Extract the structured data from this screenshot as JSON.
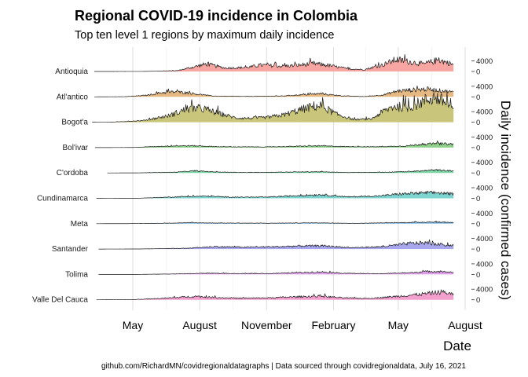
{
  "chart_data": {
    "type": "area",
    "title": "Regional COVID-19 incidence in Colombia",
    "subtitle": "Top ten level 1 regions by maximum daily incidence",
    "xlabel": "Date",
    "ylabel": "Daily incidence (confirmed cases)",
    "caption": "github.com/RichardMN/covidregionaldatagraphs | Data sourced through covidregionaldata, July 16, 2021",
    "x_ticks": [
      "May",
      "August",
      "November",
      "February",
      "May",
      "August"
    ],
    "x_tick_dates": [
      "2020-05-01",
      "2020-08-01",
      "2020-11-01",
      "2021-02-01",
      "2021-05-01",
      "2021-08-01"
    ],
    "x_range": [
      "2020-03-06",
      "2021-07-16"
    ],
    "y_ticks": [
      0,
      4000
    ],
    "y_axis_position": "right",
    "grid": true,
    "legend": "none",
    "series": [
      {
        "name": "Antioquia",
        "color": "#F8A6A1",
        "start": "2020-03-09",
        "points": [
          [
            "2020-05-15",
            20
          ],
          [
            "2020-07-01",
            300
          ],
          [
            "2020-07-25",
            1800
          ],
          [
            "2020-08-10",
            2800
          ],
          [
            "2020-09-05",
            1300
          ],
          [
            "2020-10-05",
            1500
          ],
          [
            "2020-10-25",
            2400
          ],
          [
            "2020-11-20",
            2000
          ],
          [
            "2020-12-10",
            2200
          ],
          [
            "2021-01-05",
            3000
          ],
          [
            "2021-01-25",
            2300
          ],
          [
            "2021-02-20",
            1000
          ],
          [
            "2021-03-15",
            700
          ],
          [
            "2021-04-10",
            2500
          ],
          [
            "2021-04-28",
            4500
          ],
          [
            "2021-05-20",
            3500
          ],
          [
            "2021-06-05",
            2800
          ],
          [
            "2021-06-25",
            4300
          ],
          [
            "2021-07-10",
            3200
          ],
          [
            "2021-07-16",
            2500
          ]
        ]
      },
      {
        "name": "Atl'antico",
        "color": "#E6B983",
        "start": "2020-03-09",
        "points": [
          [
            "2020-04-20",
            50
          ],
          [
            "2020-05-20",
            600
          ],
          [
            "2020-06-10",
            1600
          ],
          [
            "2020-06-30",
            1900
          ],
          [
            "2020-07-20",
            1300
          ],
          [
            "2020-08-20",
            300
          ],
          [
            "2020-10-01",
            150
          ],
          [
            "2020-11-20",
            300
          ],
          [
            "2020-12-15",
            700
          ],
          [
            "2021-01-15",
            1200
          ],
          [
            "2021-02-10",
            400
          ],
          [
            "2021-03-15",
            100
          ],
          [
            "2021-04-10",
            700
          ],
          [
            "2021-04-30",
            2200
          ],
          [
            "2021-05-20",
            2600
          ],
          [
            "2021-06-10",
            2900
          ],
          [
            "2021-06-30",
            2300
          ],
          [
            "2021-07-16",
            1800
          ]
        ]
      },
      {
        "name": "Bogot'a",
        "color": "#C9C57A",
        "start": "2020-03-06",
        "points": [
          [
            "2020-04-01",
            20
          ],
          [
            "2020-05-15",
            600
          ],
          [
            "2020-06-20",
            2500
          ],
          [
            "2020-07-15",
            5000
          ],
          [
            "2020-08-05",
            5200
          ],
          [
            "2020-08-25",
            3500
          ],
          [
            "2020-09-20",
            1600
          ],
          [
            "2020-10-10",
            1500
          ],
          [
            "2020-11-01",
            1800
          ],
          [
            "2020-11-25",
            2800
          ],
          [
            "2020-12-15",
            4500
          ],
          [
            "2021-01-05",
            6000
          ],
          [
            "2021-01-15",
            6200
          ],
          [
            "2021-02-05",
            3000
          ],
          [
            "2021-03-01",
            1000
          ],
          [
            "2021-03-25",
            1200
          ],
          [
            "2021-04-10",
            4000
          ],
          [
            "2021-04-25",
            6000
          ],
          [
            "2021-05-15",
            5500
          ],
          [
            "2021-06-05",
            8000
          ],
          [
            "2021-06-20",
            9500
          ],
          [
            "2021-07-05",
            7500
          ],
          [
            "2021-07-16",
            5000
          ]
        ]
      },
      {
        "name": "Bol'ivar",
        "color": "#8FD18A",
        "start": "2020-03-10",
        "points": [
          [
            "2020-05-01",
            50
          ],
          [
            "2020-06-20",
            600
          ],
          [
            "2020-07-20",
            700
          ],
          [
            "2020-09-01",
            300
          ],
          [
            "2020-11-01",
            250
          ],
          [
            "2021-01-10",
            650
          ],
          [
            "2021-02-15",
            400
          ],
          [
            "2021-04-01",
            300
          ],
          [
            "2021-05-10",
            600
          ],
          [
            "2021-06-01",
            1200
          ],
          [
            "2021-06-25",
            1500
          ],
          [
            "2021-07-16",
            1300
          ]
        ]
      },
      {
        "name": "C'ordoba",
        "color": "#7FD6A6",
        "start": "2020-03-27",
        "points": [
          [
            "2020-05-10",
            30
          ],
          [
            "2020-07-01",
            300
          ],
          [
            "2020-07-25",
            800
          ],
          [
            "2020-08-20",
            400
          ],
          [
            "2020-10-01",
            150
          ],
          [
            "2021-01-10",
            450
          ],
          [
            "2021-02-20",
            150
          ],
          [
            "2021-04-15",
            300
          ],
          [
            "2021-05-20",
            550
          ],
          [
            "2021-06-20",
            1100
          ],
          [
            "2021-07-05",
            900
          ],
          [
            "2021-07-16",
            750
          ]
        ]
      },
      {
        "name": "Cundinamarca",
        "color": "#7ED4D1",
        "start": "2020-03-12",
        "points": [
          [
            "2020-05-10",
            50
          ],
          [
            "2020-07-10",
            650
          ],
          [
            "2020-08-10",
            800
          ],
          [
            "2020-09-15",
            450
          ],
          [
            "2020-11-01",
            450
          ],
          [
            "2020-12-20",
            1100
          ],
          [
            "2021-01-15",
            1400
          ],
          [
            "2021-02-20",
            550
          ],
          [
            "2021-04-05",
            900
          ],
          [
            "2021-05-01",
            1600
          ],
          [
            "2021-06-05",
            2000
          ],
          [
            "2021-06-25",
            2100
          ],
          [
            "2021-07-16",
            1600
          ]
        ]
      },
      {
        "name": "Meta",
        "color": "#7FB6DF",
        "start": "2020-03-12",
        "points": [
          [
            "2020-04-20",
            20
          ],
          [
            "2020-06-01",
            120
          ],
          [
            "2020-07-15",
            350
          ],
          [
            "2020-09-01",
            250
          ],
          [
            "2020-11-01",
            180
          ],
          [
            "2021-01-10",
            320
          ],
          [
            "2021-03-01",
            120
          ],
          [
            "2021-05-01",
            380
          ],
          [
            "2021-06-15",
            650
          ],
          [
            "2021-07-16",
            450
          ]
        ]
      },
      {
        "name": "Santander",
        "color": "#A8A6EC",
        "start": "2020-03-15",
        "points": [
          [
            "2020-05-10",
            30
          ],
          [
            "2020-07-15",
            300
          ],
          [
            "2020-08-20",
            900
          ],
          [
            "2020-10-01",
            700
          ],
          [
            "2020-11-20",
            900
          ],
          [
            "2020-12-20",
            1200
          ],
          [
            "2021-01-20",
            1200
          ],
          [
            "2021-02-25",
            500
          ],
          [
            "2021-04-10",
            900
          ],
          [
            "2021-05-15",
            2100
          ],
          [
            "2021-06-05",
            2400
          ],
          [
            "2021-06-25",
            1800
          ],
          [
            "2021-07-16",
            1300
          ]
        ]
      },
      {
        "name": "Tolima",
        "color": "#DDA0E8",
        "start": "2020-03-15",
        "points": [
          [
            "2020-05-10",
            20
          ],
          [
            "2020-07-01",
            200
          ],
          [
            "2020-08-15",
            480
          ],
          [
            "2020-09-20",
            300
          ],
          [
            "2020-11-10",
            350
          ],
          [
            "2021-01-15",
            950
          ],
          [
            "2021-02-15",
            450
          ],
          [
            "2021-04-01",
            250
          ],
          [
            "2021-05-15",
            600
          ],
          [
            "2021-06-15",
            1200
          ],
          [
            "2021-07-16",
            850
          ]
        ]
      },
      {
        "name": "Valle Del Cauca",
        "color": "#F3A0CF",
        "start": "2020-03-12",
        "points": [
          [
            "2020-05-01",
            60
          ],
          [
            "2020-06-15",
            600
          ],
          [
            "2020-07-25",
            1300
          ],
          [
            "2020-08-20",
            900
          ],
          [
            "2020-09-20",
            600
          ],
          [
            "2020-11-01",
            700
          ],
          [
            "2020-12-20",
            1200
          ],
          [
            "2021-01-15",
            1400
          ],
          [
            "2021-02-15",
            700
          ],
          [
            "2021-03-20",
            500
          ],
          [
            "2021-04-20",
            1100
          ],
          [
            "2021-05-20",
            1800
          ],
          [
            "2021-06-15",
            2500
          ],
          [
            "2021-07-01",
            3000
          ],
          [
            "2021-07-16",
            2000
          ]
        ]
      }
    ]
  }
}
